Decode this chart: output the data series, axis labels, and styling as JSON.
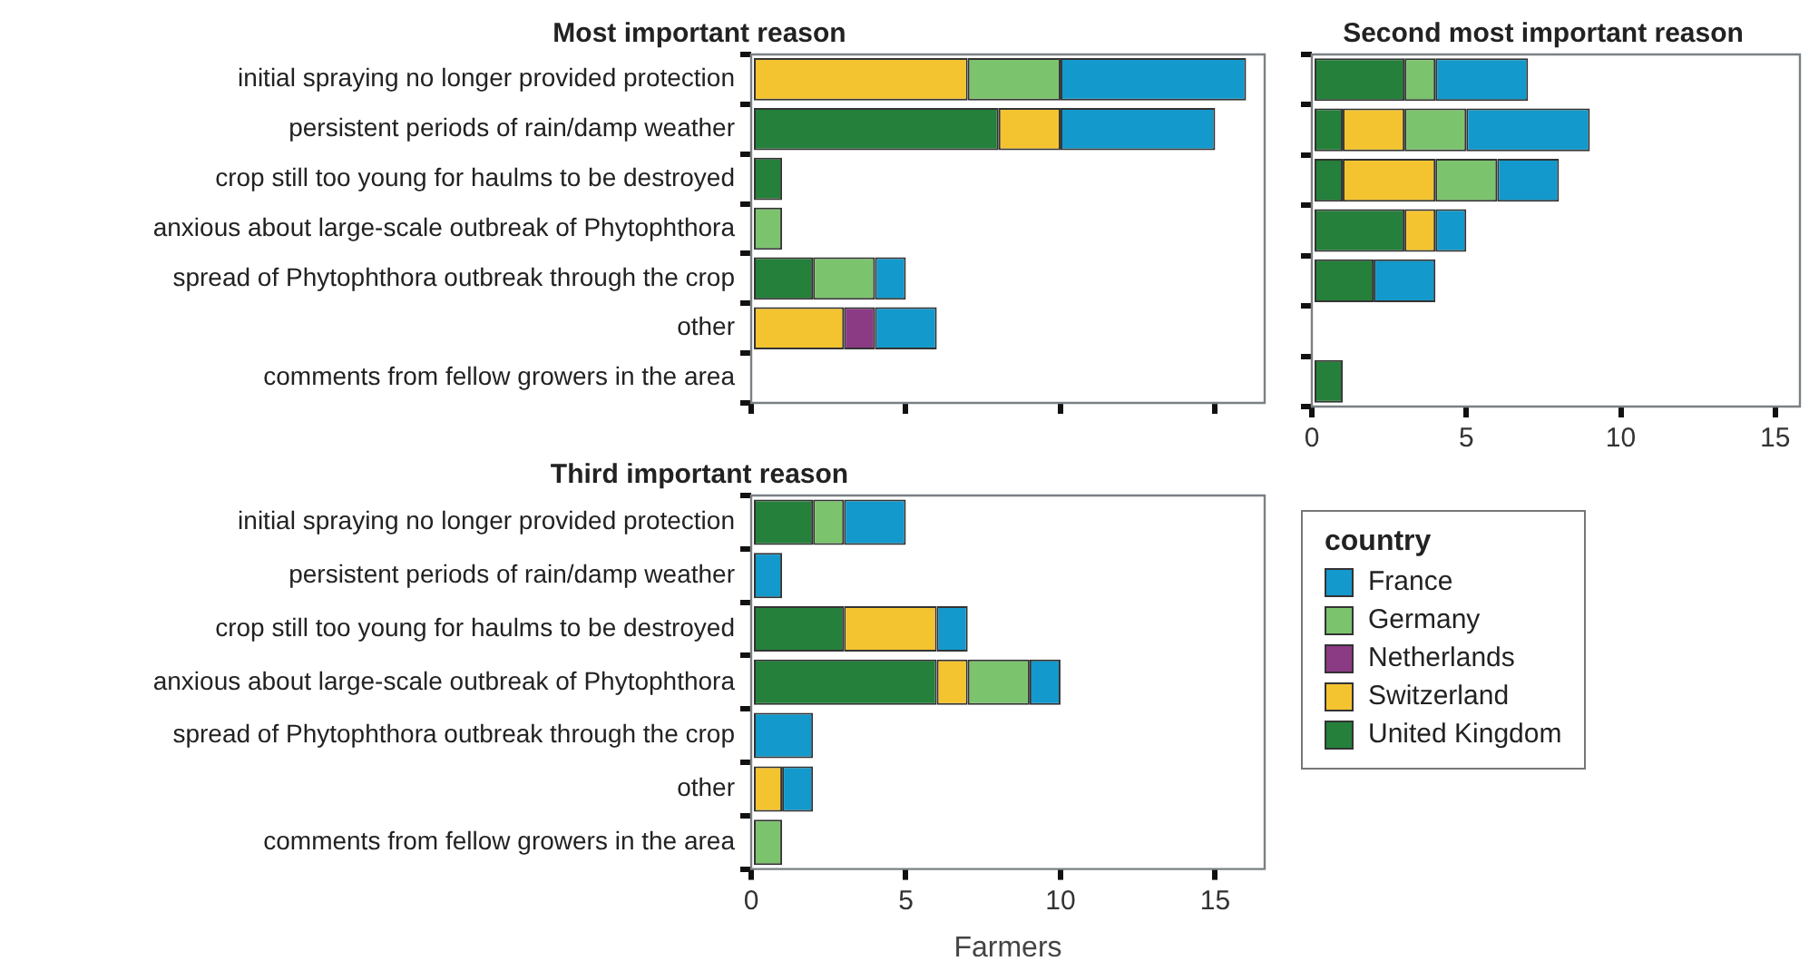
{
  "chart_data": [
    {
      "type": "bar",
      "title": "Most important reason",
      "orientation": "horizontal",
      "stacked": true,
      "tick_labels": "y",
      "xlim": [
        0,
        16.6
      ],
      "xticks": [
        0,
        5,
        10,
        15
      ],
      "categories": [
        "initial spraying no longer provided protection",
        "persistent periods of rain/damp weather",
        "crop still too young for haulms to be destroyed",
        "anxious about large-scale outbreak of Phytophthora",
        "spread of Phytophthora outbreak through the crop",
        "other",
        "comments from fellow growers in the area"
      ],
      "series": [
        {
          "color": "#24803a",
          "values": [
            0,
            8,
            1,
            0,
            2,
            0,
            0
          ]
        },
        {
          "color": "#f4c430",
          "values": [
            7,
            2,
            0,
            0,
            0,
            3,
            0
          ]
        },
        {
          "color": "#8b3a84",
          "values": [
            0,
            0,
            0,
            0,
            0,
            1,
            0
          ]
        },
        {
          "color": "#7cc36e",
          "values": [
            3,
            0,
            0,
            1,
            2,
            0,
            0
          ]
        },
        {
          "color": "#1399cc",
          "values": [
            6,
            5,
            0,
            0,
            1,
            2,
            0
          ]
        }
      ]
    },
    {
      "type": "bar",
      "title": "Second most important reason",
      "orientation": "horizontal",
      "stacked": true,
      "tick_labels": "x",
      "xlim": [
        0,
        15.8
      ],
      "xticks": [
        0,
        5,
        10,
        15
      ],
      "categories": [
        null,
        null,
        null,
        null,
        null,
        null,
        null
      ],
      "series": [
        {
          "color": "#24803a",
          "values": [
            3,
            1,
            1,
            3,
            2,
            0,
            1
          ]
        },
        {
          "color": "#f4c430",
          "values": [
            0,
            2,
            3,
            1,
            0,
            0,
            0
          ]
        },
        {
          "color": "#8b3a84",
          "values": [
            0,
            0,
            0,
            0,
            0,
            0,
            0
          ]
        },
        {
          "color": "#7cc36e",
          "values": [
            1,
            2,
            2,
            0,
            0,
            0,
            0
          ]
        },
        {
          "color": "#1399cc",
          "values": [
            3,
            4,
            2,
            1,
            2,
            0,
            0
          ]
        }
      ]
    },
    {
      "type": "bar",
      "title": "Third important reason",
      "xlabel": "Farmers",
      "orientation": "horizontal",
      "stacked": true,
      "xlim": [
        0,
        16.6
      ],
      "xticks": [
        0,
        5,
        10,
        15
      ],
      "legend": "right",
      "legend_title": "country",
      "categories": [
        "initial spraying no longer provided protection",
        "persistent periods of rain/damp weather",
        "crop still too young for haulms to be destroyed",
        "anxious about large-scale outbreak of Phytophthora",
        "spread of Phytophthora outbreak through the crop",
        "other",
        "comments from fellow growers in the area"
      ],
      "series": [
        {
          "name": "United Kingdom",
          "color": "#24803a",
          "values": [
            2,
            0,
            3,
            6,
            0,
            0,
            0
          ]
        },
        {
          "name": "Switzerland",
          "color": "#f4c430",
          "values": [
            0,
            0,
            3,
            1,
            0,
            1,
            0
          ]
        },
        {
          "name": "Netherlands",
          "color": "#8b3a84",
          "values": [
            0,
            0,
            0,
            0,
            0,
            0,
            0
          ]
        },
        {
          "name": "Germany",
          "color": "#7cc36e",
          "values": [
            1,
            0,
            0,
            2,
            0,
            0,
            1
          ]
        },
        {
          "name": "France",
          "color": "#1399cc",
          "values": [
            2,
            1,
            1,
            1,
            2,
            1,
            0
          ]
        }
      ]
    }
  ]
}
